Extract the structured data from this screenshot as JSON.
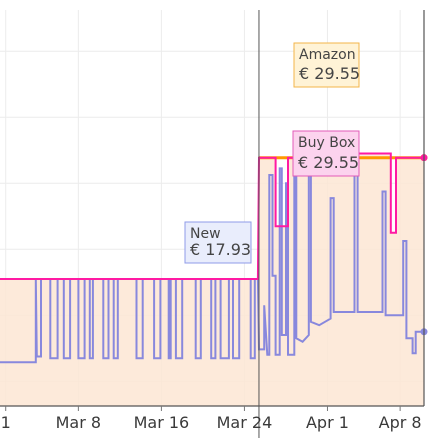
{
  "chart_data": {
    "type": "line",
    "title": "",
    "xlabel": "",
    "ylabel": "",
    "x_ticks": [
      {
        "label": "1",
        "x": 1
      },
      {
        "label": "Mar 8",
        "x": 8
      },
      {
        "label": "Mar 16",
        "x": 16
      },
      {
        "label": "Mar 24",
        "x": 24
      },
      {
        "label": "Apr 1",
        "x": 32
      },
      {
        "label": "Apr 8",
        "x": 39
      }
    ],
    "xlim": [
      0.45,
      41.3
    ],
    "ylim": [
      14.5,
      38.5
    ],
    "grid": true,
    "colors": {
      "amazon": "#ff9900",
      "buy_box": "#ff1aa3",
      "new": "#8888dd",
      "area_fill": "#fde6d3",
      "crosshair": "#555555"
    },
    "series": [
      {
        "name": "Amazon",
        "points": [
          [
            25.4,
            29.55
          ],
          [
            41.3,
            29.55
          ]
        ]
      },
      {
        "name": "Buy Box",
        "points": [
          [
            0.45,
            22.2
          ],
          [
            25.3,
            22.2
          ],
          [
            25.4,
            29.55
          ],
          [
            27.0,
            29.55
          ],
          [
            27.0,
            25.4
          ],
          [
            28.2,
            25.4
          ],
          [
            28.2,
            29.55
          ],
          [
            29.6,
            29.55
          ],
          [
            29.6,
            29.8
          ],
          [
            31.3,
            29.8
          ],
          [
            31.3,
            29.8
          ],
          [
            38.1,
            29.8
          ],
          [
            38.1,
            25.0
          ],
          [
            38.6,
            25.0
          ],
          [
            38.6,
            29.55
          ],
          [
            41.3,
            29.55
          ]
        ]
      },
      {
        "name": "New",
        "points": [
          [
            0.45,
            17.15
          ],
          [
            3.9,
            17.15
          ],
          [
            3.9,
            22.2
          ],
          [
            4.0,
            17.5
          ],
          [
            4.4,
            17.5
          ],
          [
            4.4,
            22.2
          ],
          [
            5.3,
            22.2
          ],
          [
            5.3,
            17.4
          ],
          [
            6.0,
            17.4
          ],
          [
            6.0,
            22.2
          ],
          [
            6.6,
            22.2
          ],
          [
            6.6,
            17.4
          ],
          [
            7.2,
            17.4
          ],
          [
            7.2,
            22.2
          ],
          [
            8.0,
            22.2
          ],
          [
            8.0,
            17.4
          ],
          [
            8.6,
            17.4
          ],
          [
            8.6,
            22.2
          ],
          [
            9.1,
            22.2
          ],
          [
            9.1,
            17.4
          ],
          [
            9.4,
            17.4
          ],
          [
            9.4,
            22.2
          ],
          [
            10.4,
            22.2
          ],
          [
            10.4,
            17.4
          ],
          [
            10.9,
            17.4
          ],
          [
            10.9,
            22.2
          ],
          [
            11.4,
            22.2
          ],
          [
            11.4,
            17.4
          ],
          [
            11.8,
            17.4
          ],
          [
            11.8,
            22.2
          ],
          [
            13.6,
            22.2
          ],
          [
            13.6,
            17.4
          ],
          [
            14.2,
            17.4
          ],
          [
            14.2,
            22.2
          ],
          [
            15.3,
            22.2
          ],
          [
            15.3,
            17.4
          ],
          [
            15.9,
            17.4
          ],
          [
            15.9,
            22.2
          ],
          [
            16.7,
            22.2
          ],
          [
            16.7,
            17.4
          ],
          [
            16.9,
            17.4
          ],
          [
            16.9,
            22.2
          ],
          [
            17.4,
            22.2
          ],
          [
            17.4,
            17.4
          ],
          [
            18.0,
            17.4
          ],
          [
            18.0,
            22.2
          ],
          [
            19.3,
            22.2
          ],
          [
            19.3,
            17.4
          ],
          [
            19.8,
            17.4
          ],
          [
            19.8,
            22.2
          ],
          [
            20.8,
            22.2
          ],
          [
            20.8,
            17.4
          ],
          [
            21.2,
            17.4
          ],
          [
            21.2,
            22.2
          ],
          [
            21.7,
            22.2
          ],
          [
            21.7,
            17.4
          ],
          [
            22.5,
            17.4
          ],
          [
            22.5,
            22.2
          ],
          [
            22.9,
            22.2
          ],
          [
            22.9,
            17.4
          ],
          [
            23.5,
            17.4
          ],
          [
            23.5,
            22.2
          ],
          [
            24.6,
            22.2
          ],
          [
            24.6,
            17.4
          ],
          [
            25.0,
            17.4
          ],
          [
            25.0,
            22.2
          ],
          [
            25.3,
            22.2
          ],
          [
            25.4,
            17.93
          ],
          [
            25.9,
            17.93
          ],
          [
            25.9,
            20.6
          ],
          [
            26.2,
            17.6
          ],
          [
            26.4,
            17.6
          ],
          [
            26.4,
            28.5
          ],
          [
            26.7,
            28.5
          ],
          [
            26.7,
            22.4
          ],
          [
            27.0,
            22.4
          ],
          [
            27.0,
            17.6
          ],
          [
            27.4,
            17.6
          ],
          [
            27.4,
            28.9
          ],
          [
            27.6,
            28.9
          ],
          [
            27.6,
            18.8
          ],
          [
            28.0,
            18.8
          ],
          [
            28.0,
            28.0
          ],
          [
            28.2,
            28.0
          ],
          [
            28.2,
            17.6
          ],
          [
            28.8,
            17.6
          ],
          [
            28.8,
            29.3
          ],
          [
            29.0,
            29.3
          ],
          [
            29.0,
            18.6
          ],
          [
            29.6,
            18.4
          ],
          [
            30.2,
            18.8
          ],
          [
            30.2,
            29.3
          ],
          [
            30.4,
            29.3
          ],
          [
            30.4,
            19.6
          ],
          [
            31.2,
            19.4
          ],
          [
            32.3,
            19.8
          ],
          [
            32.3,
            27.1
          ],
          [
            32.6,
            27.1
          ],
          [
            32.6,
            20.2
          ],
          [
            34.6,
            20.2
          ],
          [
            34.6,
            29.0
          ],
          [
            34.9,
            29.0
          ],
          [
            34.9,
            20.2
          ],
          [
            37.3,
            20.2
          ],
          [
            37.3,
            27.5
          ],
          [
            37.6,
            27.5
          ],
          [
            37.6,
            20.0
          ],
          [
            39.3,
            20.0
          ],
          [
            39.3,
            24.5
          ],
          [
            39.6,
            24.5
          ],
          [
            39.6,
            18.6
          ],
          [
            40.2,
            18.6
          ],
          [
            40.2,
            17.7
          ],
          [
            40.5,
            17.7
          ],
          [
            40.5,
            19.0
          ],
          [
            41.3,
            19.0
          ]
        ]
      }
    ],
    "tooltips": [
      {
        "series": "Amazon",
        "title": "Amazon",
        "value": "€ 29.55"
      },
      {
        "series": "Buy Box",
        "title": "Buy Box",
        "value": "€ 29.55"
      },
      {
        "series": "New",
        "title": "New",
        "value": "€ 17.93"
      }
    ],
    "hover_x": 25.4
  }
}
